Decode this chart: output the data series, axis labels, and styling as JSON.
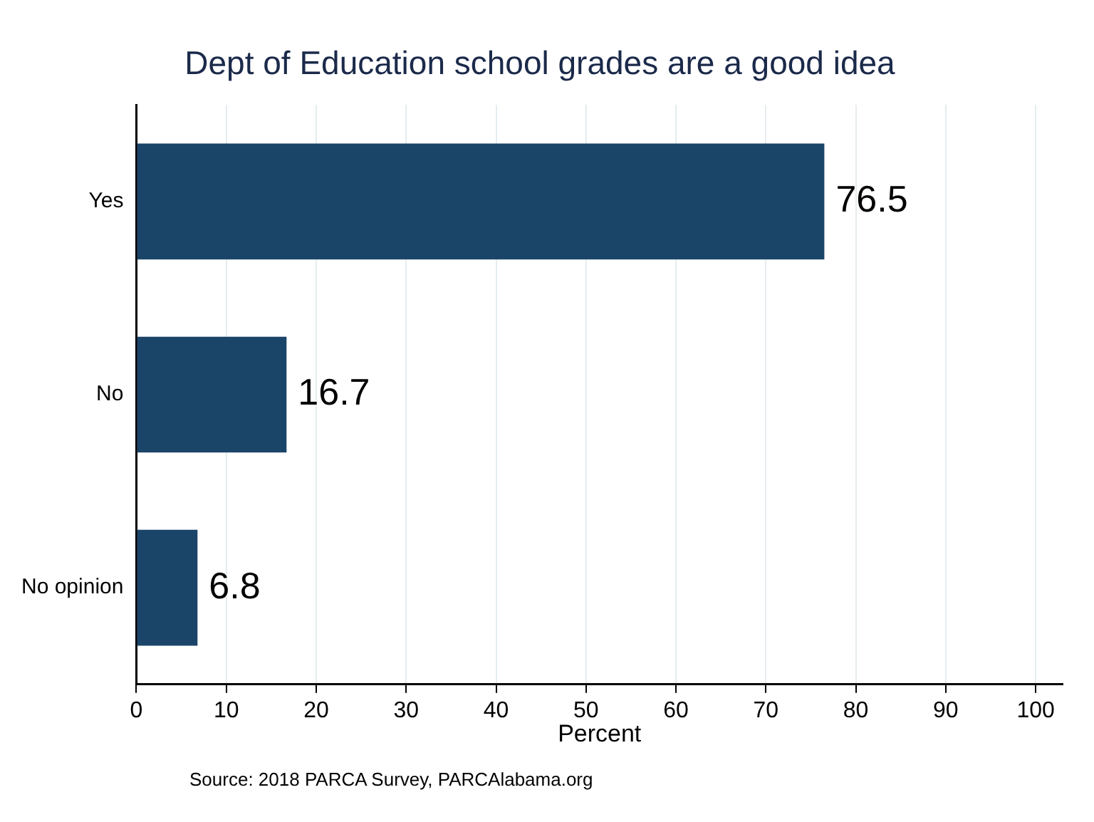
{
  "chart_data": {
    "type": "bar",
    "orientation": "horizontal",
    "title": "Dept of Education school grades are a good idea",
    "xlabel": "Percent",
    "categories": [
      "Yes",
      "No",
      "No opinion"
    ],
    "values": [
      76.5,
      16.7,
      6.8
    ],
    "color": "#1b4469",
    "xlim": [
      0,
      103
    ],
    "xticks": [
      0,
      10,
      20,
      30,
      40,
      50,
      60,
      70,
      80,
      90,
      100
    ],
    "grid": "x",
    "data_labels": true,
    "annotations": [
      "Source: 2018 PARCA Survey, PARCAlabama.org"
    ]
  }
}
